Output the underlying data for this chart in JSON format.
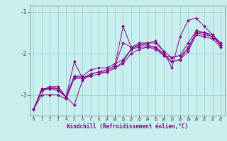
{
  "xlabel": "Windchill (Refroidissement éolien,°C)",
  "background_color": "#c8eeed",
  "grid_color": "#99d9d5",
  "line_color": "#880088",
  "xlim": [
    -0.5,
    23.5
  ],
  "ylim": [
    -3.5,
    -0.85
  ],
  "yticks": [
    -3,
    -2,
    -1
  ],
  "xticks": [
    0,
    1,
    2,
    3,
    4,
    5,
    6,
    7,
    8,
    9,
    10,
    11,
    12,
    13,
    14,
    15,
    16,
    17,
    18,
    19,
    20,
    21,
    22,
    23
  ],
  "lines": [
    [
      -3.35,
      -2.85,
      -2.85,
      -2.9,
      -3.05,
      -2.2,
      -2.6,
      -2.5,
      -2.45,
      -2.4,
      -2.3,
      -1.75,
      -1.85,
      -1.8,
      -1.8,
      -1.85,
      -2.05,
      -2.1,
      -2.05,
      -1.9,
      -1.5,
      -1.5,
      -1.6,
      -1.75
    ],
    [
      -3.35,
      -2.9,
      -2.85,
      -2.85,
      -3.05,
      -2.55,
      -2.6,
      -2.5,
      -2.45,
      -2.45,
      -2.35,
      -2.2,
      -1.9,
      -1.85,
      -1.85,
      -1.85,
      -2.0,
      -2.2,
      -2.15,
      -1.85,
      -1.5,
      -1.55,
      -1.6,
      -1.8
    ],
    [
      -3.35,
      -2.9,
      -2.8,
      -2.85,
      -3.05,
      -3.25,
      -2.65,
      -2.5,
      -2.45,
      -2.4,
      -2.3,
      -1.35,
      -1.85,
      -1.75,
      -1.75,
      -1.7,
      -1.95,
      -2.35,
      -1.6,
      -1.2,
      -1.15,
      -1.35,
      -1.55,
      -1.8
    ],
    [
      -3.35,
      -2.9,
      -2.8,
      -2.8,
      -3.05,
      -2.55,
      -2.55,
      -2.4,
      -2.35,
      -2.35,
      -2.25,
      -2.15,
      -1.9,
      -1.8,
      -1.75,
      -1.75,
      -1.95,
      -2.1,
      -2.05,
      -1.75,
      -1.45,
      -1.5,
      -1.55,
      -1.75
    ],
    [
      -3.35,
      -3.0,
      -3.0,
      -3.0,
      -3.1,
      -2.6,
      -2.6,
      -2.55,
      -2.5,
      -2.45,
      -2.35,
      -2.25,
      -2.0,
      -1.9,
      -1.85,
      -1.9,
      -2.05,
      -2.2,
      -2.15,
      -1.95,
      -1.55,
      -1.6,
      -1.65,
      -1.85
    ]
  ]
}
